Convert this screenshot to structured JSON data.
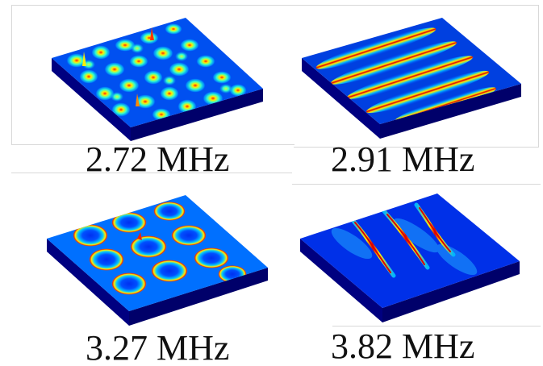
{
  "figure": {
    "panels": [
      {
        "label": "2.72 MHz",
        "pattern": "dense spotted eigenmode pattern"
      },
      {
        "label": "2.91 MHz",
        "pattern": "diagonal elongated stripe pattern"
      },
      {
        "label": "3.27 MHz",
        "pattern": "irregular mixed mode pattern"
      },
      {
        "label": "3.82 MHz",
        "pattern": "thin diagonal ridge pattern"
      }
    ],
    "colormap": [
      "#00008f",
      "#0033ff",
      "#00b4ff",
      "#33ffcc",
      "#ffff00",
      "#ff8800",
      "#dd0000"
    ]
  }
}
